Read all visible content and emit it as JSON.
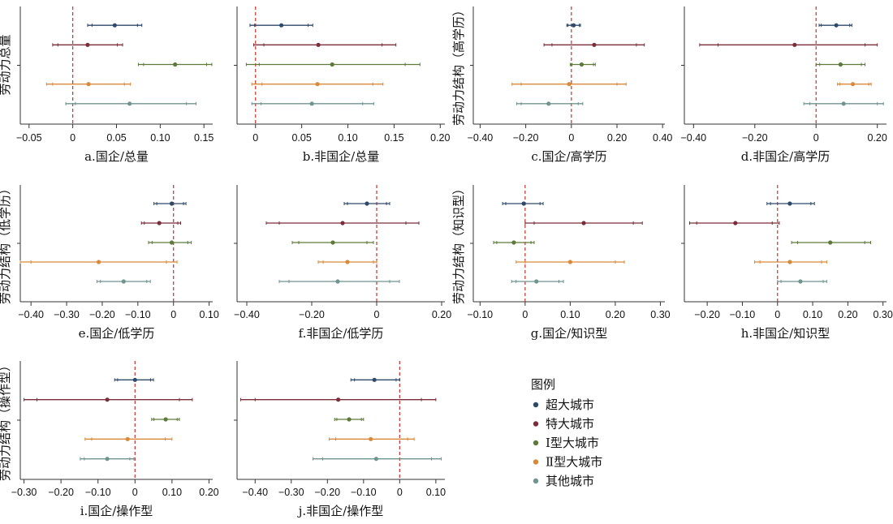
{
  "colors": {
    "super_large": "#2e4a6b",
    "mega": "#7a2e3a",
    "type1": "#5e7a3a",
    "type2": "#d9893a",
    "other": "#6f9490",
    "zero_line": "#c8302a",
    "axis": "#333333"
  },
  "legend": {
    "title": "图例",
    "items": [
      {
        "label": "超大城市",
        "color_key": "super_large"
      },
      {
        "label": "特大城市",
        "color_key": "mega"
      },
      {
        "label": "Ⅰ型大城市",
        "color_key": "type1"
      },
      {
        "label": "Ⅱ型大城市",
        "color_key": "type2"
      },
      {
        "label": "其他城市",
        "color_key": "other"
      }
    ]
  },
  "chart_data": [
    {
      "type": "coefficient-plot",
      "title": "a.国企/总量",
      "ylabel": "劳动力总量",
      "xlim": [
        -0.06,
        0.16
      ],
      "ticks": [
        -0.05,
        0,
        0.05,
        0.1,
        0.15
      ],
      "tick_labels": [
        "−0.05",
        "0",
        "0.05",
        "0.10",
        "0.15"
      ],
      "series": [
        {
          "color_key": "super_large",
          "est": 0.048,
          "ci95": [
            0.017,
            0.079
          ],
          "ci90": [
            0.022,
            0.074
          ]
        },
        {
          "color_key": "mega",
          "est": 0.017,
          "ci95": [
            -0.023,
            0.057
          ],
          "ci90": [
            -0.017,
            0.051
          ]
        },
        {
          "color_key": "type1",
          "est": 0.117,
          "ci95": [
            0.075,
            0.159
          ],
          "ci90": [
            0.081,
            0.153
          ]
        },
        {
          "color_key": "type2",
          "est": 0.018,
          "ci95": [
            -0.03,
            0.066
          ],
          "ci90": [
            -0.023,
            0.059
          ]
        },
        {
          "color_key": "other",
          "est": 0.065,
          "ci95": [
            -0.008,
            0.141
          ],
          "ci90": [
            0.003,
            0.13
          ]
        }
      ]
    },
    {
      "type": "coefficient-plot",
      "title": "b.非国企/总量",
      "ylabel": "",
      "xlim": [
        -0.02,
        0.205
      ],
      "ticks": [
        0,
        0.05,
        0.1,
        0.15,
        0.2
      ],
      "tick_labels": [
        "0",
        "0.05",
        "0.10",
        "0.15",
        "0.20"
      ],
      "series": [
        {
          "color_key": "super_large",
          "est": 0.028,
          "ci95": [
            -0.006,
            0.062
          ],
          "ci90": [
            -0.001,
            0.057
          ]
        },
        {
          "color_key": "mega",
          "est": 0.068,
          "ci95": [
            -0.002,
            0.152
          ],
          "ci90": [
            0.009,
            0.137
          ]
        },
        {
          "color_key": "type1",
          "est": 0.083,
          "ci95": [
            -0.01,
            0.178
          ],
          "ci90": [
            0.004,
            0.162
          ]
        },
        {
          "color_key": "type2",
          "est": 0.067,
          "ci95": [
            -0.004,
            0.138
          ],
          "ci90": [
            0.007,
            0.127
          ]
        },
        {
          "color_key": "other",
          "est": 0.061,
          "ci95": [
            -0.004,
            0.128
          ],
          "ci90": [
            0.006,
            0.116
          ]
        }
      ]
    },
    {
      "type": "coefficient-plot",
      "title": "c.国企/高学历",
      "ylabel": "劳动力结构（高学历）",
      "xlim": [
        -0.43,
        0.41
      ],
      "ticks": [
        -0.4,
        -0.2,
        0,
        0.2,
        0.4
      ],
      "tick_labels": [
        "−0.40",
        "−0.20",
        "0",
        "0.20",
        "0.40"
      ],
      "series": [
        {
          "color_key": "super_large",
          "est": 0.01,
          "ci95": [
            -0.02,
            0.04
          ],
          "ci90": [
            -0.015,
            0.035
          ]
        },
        {
          "color_key": "mega",
          "est": 0.1,
          "ci95": [
            -0.12,
            0.32
          ],
          "ci90": [
            -0.085,
            0.285
          ]
        },
        {
          "color_key": "type1",
          "est": 0.045,
          "ci95": [
            -0.005,
            0.105
          ],
          "ci90": [
            0.003,
            0.097
          ]
        },
        {
          "color_key": "type2",
          "est": -0.01,
          "ci95": [
            -0.26,
            0.24
          ],
          "ci90": [
            -0.22,
            0.2
          ]
        },
        {
          "color_key": "other",
          "est": -0.1,
          "ci95": [
            -0.24,
            0.05
          ],
          "ci90": [
            -0.22,
            0.03
          ]
        }
      ]
    },
    {
      "type": "coefficient-plot",
      "title": "d.非国企/高学历",
      "ylabel": "",
      "xlim": [
        -0.43,
        0.23
      ],
      "ticks": [
        -0.4,
        -0.2,
        0,
        0.2
      ],
      "tick_labels": [
        "−0.40",
        "−0.20",
        "0",
        "0.20"
      ],
      "series": [
        {
          "color_key": "super_large",
          "est": 0.066,
          "ci95": [
            0.01,
            0.117
          ],
          "ci90": [
            0.017,
            0.11
          ]
        },
        {
          "color_key": "mega",
          "est": -0.07,
          "ci95": [
            -0.38,
            0.2
          ],
          "ci90": [
            -0.32,
            0.16
          ]
        },
        {
          "color_key": "type1",
          "est": 0.08,
          "ci95": [
            0,
            0.16
          ],
          "ci90": [
            0.012,
            0.148
          ]
        },
        {
          "color_key": "type2",
          "est": 0.12,
          "ci95": [
            0.07,
            0.18
          ],
          "ci90": [
            0.078,
            0.172
          ]
        },
        {
          "color_key": "other",
          "est": 0.09,
          "ci95": [
            -0.04,
            0.22
          ],
          "ci90": [
            -0.02,
            0.2
          ]
        }
      ]
    },
    {
      "type": "coefficient-plot",
      "title": "e.国企/低学历",
      "ylabel": "劳动力结构（低学历）",
      "xlim": [
        -0.43,
        0.11
      ],
      "ticks": [
        -0.4,
        -0.3,
        -0.2,
        -0.1,
        0,
        0.1
      ],
      "tick_labels": [
        "−0.40",
        "−0.30",
        "−0.20",
        "−0.10",
        "0",
        "0.10"
      ],
      "series": [
        {
          "color_key": "super_large",
          "est": -0.005,
          "ci95": [
            -0.055,
            0.035
          ],
          "ci90": [
            -0.047,
            0.028
          ]
        },
        {
          "color_key": "mega",
          "est": -0.04,
          "ci95": [
            -0.09,
            0.02
          ],
          "ci90": [
            -0.082,
            0.012
          ]
        },
        {
          "color_key": "type1",
          "est": -0.005,
          "ci95": [
            -0.07,
            0.05
          ],
          "ci90": [
            -0.06,
            0.04
          ]
        },
        {
          "color_key": "type2",
          "est": -0.21,
          "ci95": [
            -0.43,
            0.01
          ],
          "ci90": [
            -0.4,
            -0.02
          ]
        },
        {
          "color_key": "other",
          "est": -0.14,
          "ci95": [
            -0.215,
            -0.065
          ],
          "ci90": [
            -0.205,
            -0.075
          ]
        }
      ]
    },
    {
      "type": "coefficient-plot",
      "title": "f.非国企/低学历",
      "ylabel": "",
      "xlim": [
        -0.43,
        0.21
      ],
      "ticks": [
        -0.4,
        -0.2,
        0,
        0.2
      ],
      "tick_labels": [
        "−0.40",
        "−0.20",
        "0",
        "0.20"
      ],
      "series": [
        {
          "color_key": "super_large",
          "est": -0.03,
          "ci95": [
            -0.1,
            0.04
          ],
          "ci90": [
            -0.09,
            0.03
          ]
        },
        {
          "color_key": "mega",
          "est": -0.105,
          "ci95": [
            -0.34,
            0.13
          ],
          "ci90": [
            -0.3,
            0.09
          ]
        },
        {
          "color_key": "type1",
          "est": -0.135,
          "ci95": [
            -0.26,
            -0.01
          ],
          "ci90": [
            -0.24,
            -0.03
          ]
        },
        {
          "color_key": "type2",
          "est": -0.09,
          "ci95": [
            -0.18,
            0
          ],
          "ci90": [
            -0.165,
            -0.01
          ]
        },
        {
          "color_key": "other",
          "est": -0.12,
          "ci95": [
            -0.3,
            0.07
          ],
          "ci90": [
            -0.27,
            0.04
          ]
        }
      ]
    },
    {
      "type": "coefficient-plot",
      "title": "g.国企/知识型",
      "ylabel": "劳动力结构（知识型）",
      "xlim": [
        -0.115,
        0.31
      ],
      "ticks": [
        -0.1,
        0,
        0.1,
        0.2,
        0.3
      ],
      "tick_labels": [
        "−0.10",
        "0",
        "0.10",
        "0.20",
        "0.30"
      ],
      "series": [
        {
          "color_key": "super_large",
          "est": -0.003,
          "ci95": [
            -0.05,
            0.04
          ],
          "ci90": [
            -0.043,
            0.033
          ]
        },
        {
          "color_key": "mega",
          "est": 0.13,
          "ci95": [
            0,
            0.26
          ],
          "ci90": [
            0.02,
            0.24
          ]
        },
        {
          "color_key": "type1",
          "est": -0.025,
          "ci95": [
            -0.07,
            0.02
          ],
          "ci90": [
            -0.063,
            0.013
          ]
        },
        {
          "color_key": "type2",
          "est": 0.1,
          "ci95": [
            -0.02,
            0.22
          ],
          "ci90": [
            0,
            0.2
          ]
        },
        {
          "color_key": "other",
          "est": 0.025,
          "ci95": [
            -0.03,
            0.085
          ],
          "ci90": [
            -0.02,
            0.075
          ]
        }
      ]
    },
    {
      "type": "coefficient-plot",
      "title": "h.非国企/知识型",
      "ylabel": "",
      "xlim": [
        -0.265,
        0.31
      ],
      "ticks": [
        -0.2,
        -0.1,
        0,
        0.1,
        0.2,
        0.3
      ],
      "tick_labels": [
        "−0.20",
        "−0.10",
        "0",
        "0.10",
        "0.20",
        "0.30"
      ],
      "series": [
        {
          "color_key": "super_large",
          "est": 0.035,
          "ci95": [
            -0.03,
            0.105
          ],
          "ci90": [
            -0.02,
            0.095
          ]
        },
        {
          "color_key": "mega",
          "est": -0.12,
          "ci95": [
            -0.25,
            0.005
          ],
          "ci90": [
            -0.23,
            -0.015
          ]
        },
        {
          "color_key": "type1",
          "est": 0.15,
          "ci95": [
            0.04,
            0.265
          ],
          "ci90": [
            0.057,
            0.248
          ]
        },
        {
          "color_key": "type2",
          "est": 0.035,
          "ci95": [
            -0.065,
            0.14
          ],
          "ci90": [
            -0.05,
            0.125
          ]
        },
        {
          "color_key": "other",
          "est": 0.065,
          "ci95": [
            0,
            0.14
          ],
          "ci90": [
            0.01,
            0.13
          ]
        }
      ]
    },
    {
      "type": "coefficient-plot",
      "title": "i.国企/操作型",
      "ylabel": "劳动力结构（操作型）",
      "xlim": [
        -0.31,
        0.21
      ],
      "ticks": [
        -0.3,
        -0.2,
        -0.1,
        0,
        0.1,
        0.2
      ],
      "tick_labels": [
        "−0.30",
        "−0.20",
        "−0.10",
        "0",
        "0.10",
        "0.20"
      ],
      "series": [
        {
          "color_key": "super_large",
          "est": 0,
          "ci95": [
            -0.055,
            0.05
          ],
          "ci90": [
            -0.047,
            0.042
          ]
        },
        {
          "color_key": "mega",
          "est": -0.075,
          "ci95": [
            -0.3,
            0.155
          ],
          "ci90": [
            -0.265,
            0.12
          ]
        },
        {
          "color_key": "type1",
          "est": 0.083,
          "ci95": [
            0.045,
            0.12
          ],
          "ci90": [
            0.051,
            0.114
          ]
        },
        {
          "color_key": "type2",
          "est": -0.02,
          "ci95": [
            -0.135,
            0.1
          ],
          "ci90": [
            -0.117,
            0.082
          ]
        },
        {
          "color_key": "other",
          "est": -0.075,
          "ci95": [
            -0.148,
            -0.003
          ],
          "ci90": [
            -0.137,
            -0.014
          ]
        }
      ]
    },
    {
      "type": "coefficient-plot",
      "title": "j.非国企/操作型",
      "ylabel": "",
      "xlim": [
        -0.45,
        0.125
      ],
      "ticks": [
        -0.4,
        -0.3,
        -0.2,
        -0.1,
        0,
        0.1
      ],
      "tick_labels": [
        "−0.40",
        "−0.30",
        "−0.20",
        "−0.10",
        "0",
        "0.10"
      ],
      "series": [
        {
          "color_key": "super_large",
          "est": -0.07,
          "ci95": [
            -0.135,
            0
          ],
          "ci90": [
            -0.125,
            -0.01
          ]
        },
        {
          "color_key": "mega",
          "est": -0.17,
          "ci95": [
            -0.44,
            0.1
          ],
          "ci90": [
            -0.4,
            0.06
          ]
        },
        {
          "color_key": "type1",
          "est": -0.14,
          "ci95": [
            -0.18,
            -0.1
          ],
          "ci90": [
            -0.174,
            -0.106
          ]
        },
        {
          "color_key": "type2",
          "est": -0.08,
          "ci95": [
            -0.195,
            0.04
          ],
          "ci90": [
            -0.177,
            0.022
          ]
        },
        {
          "color_key": "other",
          "est": -0.065,
          "ci95": [
            -0.24,
            0.115
          ],
          "ci90": [
            -0.213,
            0.088
          ]
        }
      ]
    }
  ]
}
